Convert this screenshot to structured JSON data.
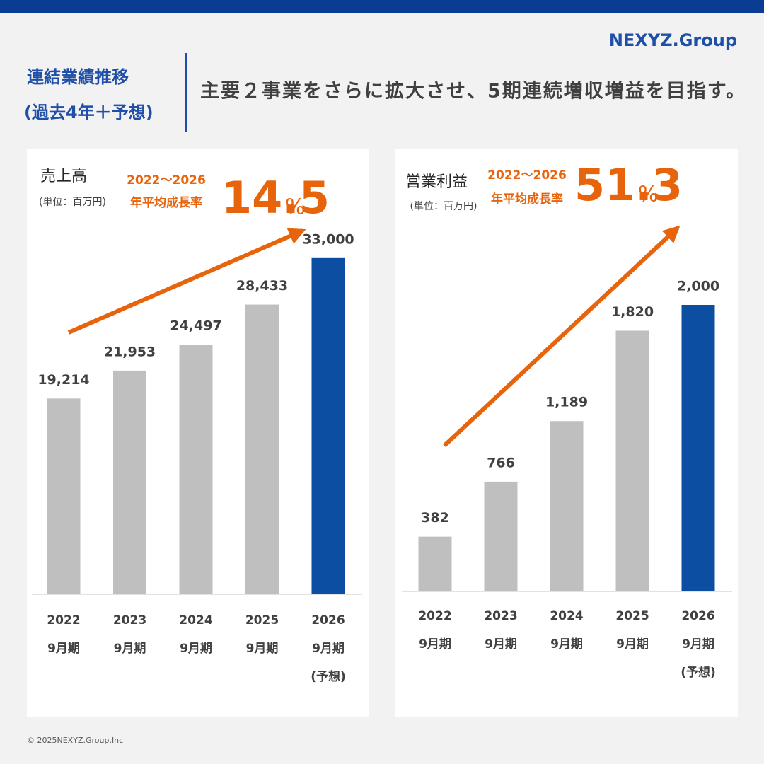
{
  "header": {
    "section_title": "連結業績推移",
    "section_subtitle": "(過去4年＋予想)",
    "headline": "主要２事業をさらに拡大させ、5期連続増収増益を目指す。",
    "logo": "NEXYZ.Group"
  },
  "footer": {
    "copyright": "© 2025NEXYZ.Group.Inc"
  },
  "chart_data": [
    {
      "type": "bar",
      "title": "売上高",
      "subtitle": "(単位：百万円)",
      "annotation_period": "2022〜2026",
      "annotation_label": "年平均成長率",
      "annotation_value": "14.5",
      "annotation_unit": "%",
      "categories": [
        "2022\n9月期",
        "2023\n9月期",
        "2024\n9月期",
        "2025\n9月期",
        "2026\n9月期\n(予想)"
      ],
      "values": [
        19214,
        21953,
        24497,
        28433,
        33000
      ],
      "value_labels": [
        "19,214",
        "21,953",
        "24,497",
        "28,433",
        "33,000"
      ],
      "colors": [
        "#bfbfbf",
        "#bfbfbf",
        "#bfbfbf",
        "#bfbfbf",
        "#0b4ea2"
      ],
      "ylim": [
        0,
        35000
      ]
    },
    {
      "type": "bar",
      "title": "営業利益",
      "subtitle": "(単位：百万円)",
      "annotation_period": "2022〜2026",
      "annotation_label": "年平均成長率",
      "annotation_value": "51.3",
      "annotation_unit": "%",
      "categories": [
        "2022\n9月期",
        "2023\n9月期",
        "2024\n9月期",
        "2025\n9月期",
        "2026\n9月期\n(予想)"
      ],
      "values": [
        382,
        766,
        1189,
        1820,
        2000
      ],
      "value_labels": [
        "382",
        "766",
        "1,189",
        "1,820",
        "2,000"
      ],
      "colors": [
        "#bfbfbf",
        "#bfbfbf",
        "#bfbfbf",
        "#bfbfbf",
        "#0b4ea2"
      ],
      "ylim": [
        0,
        2400
      ]
    }
  ]
}
